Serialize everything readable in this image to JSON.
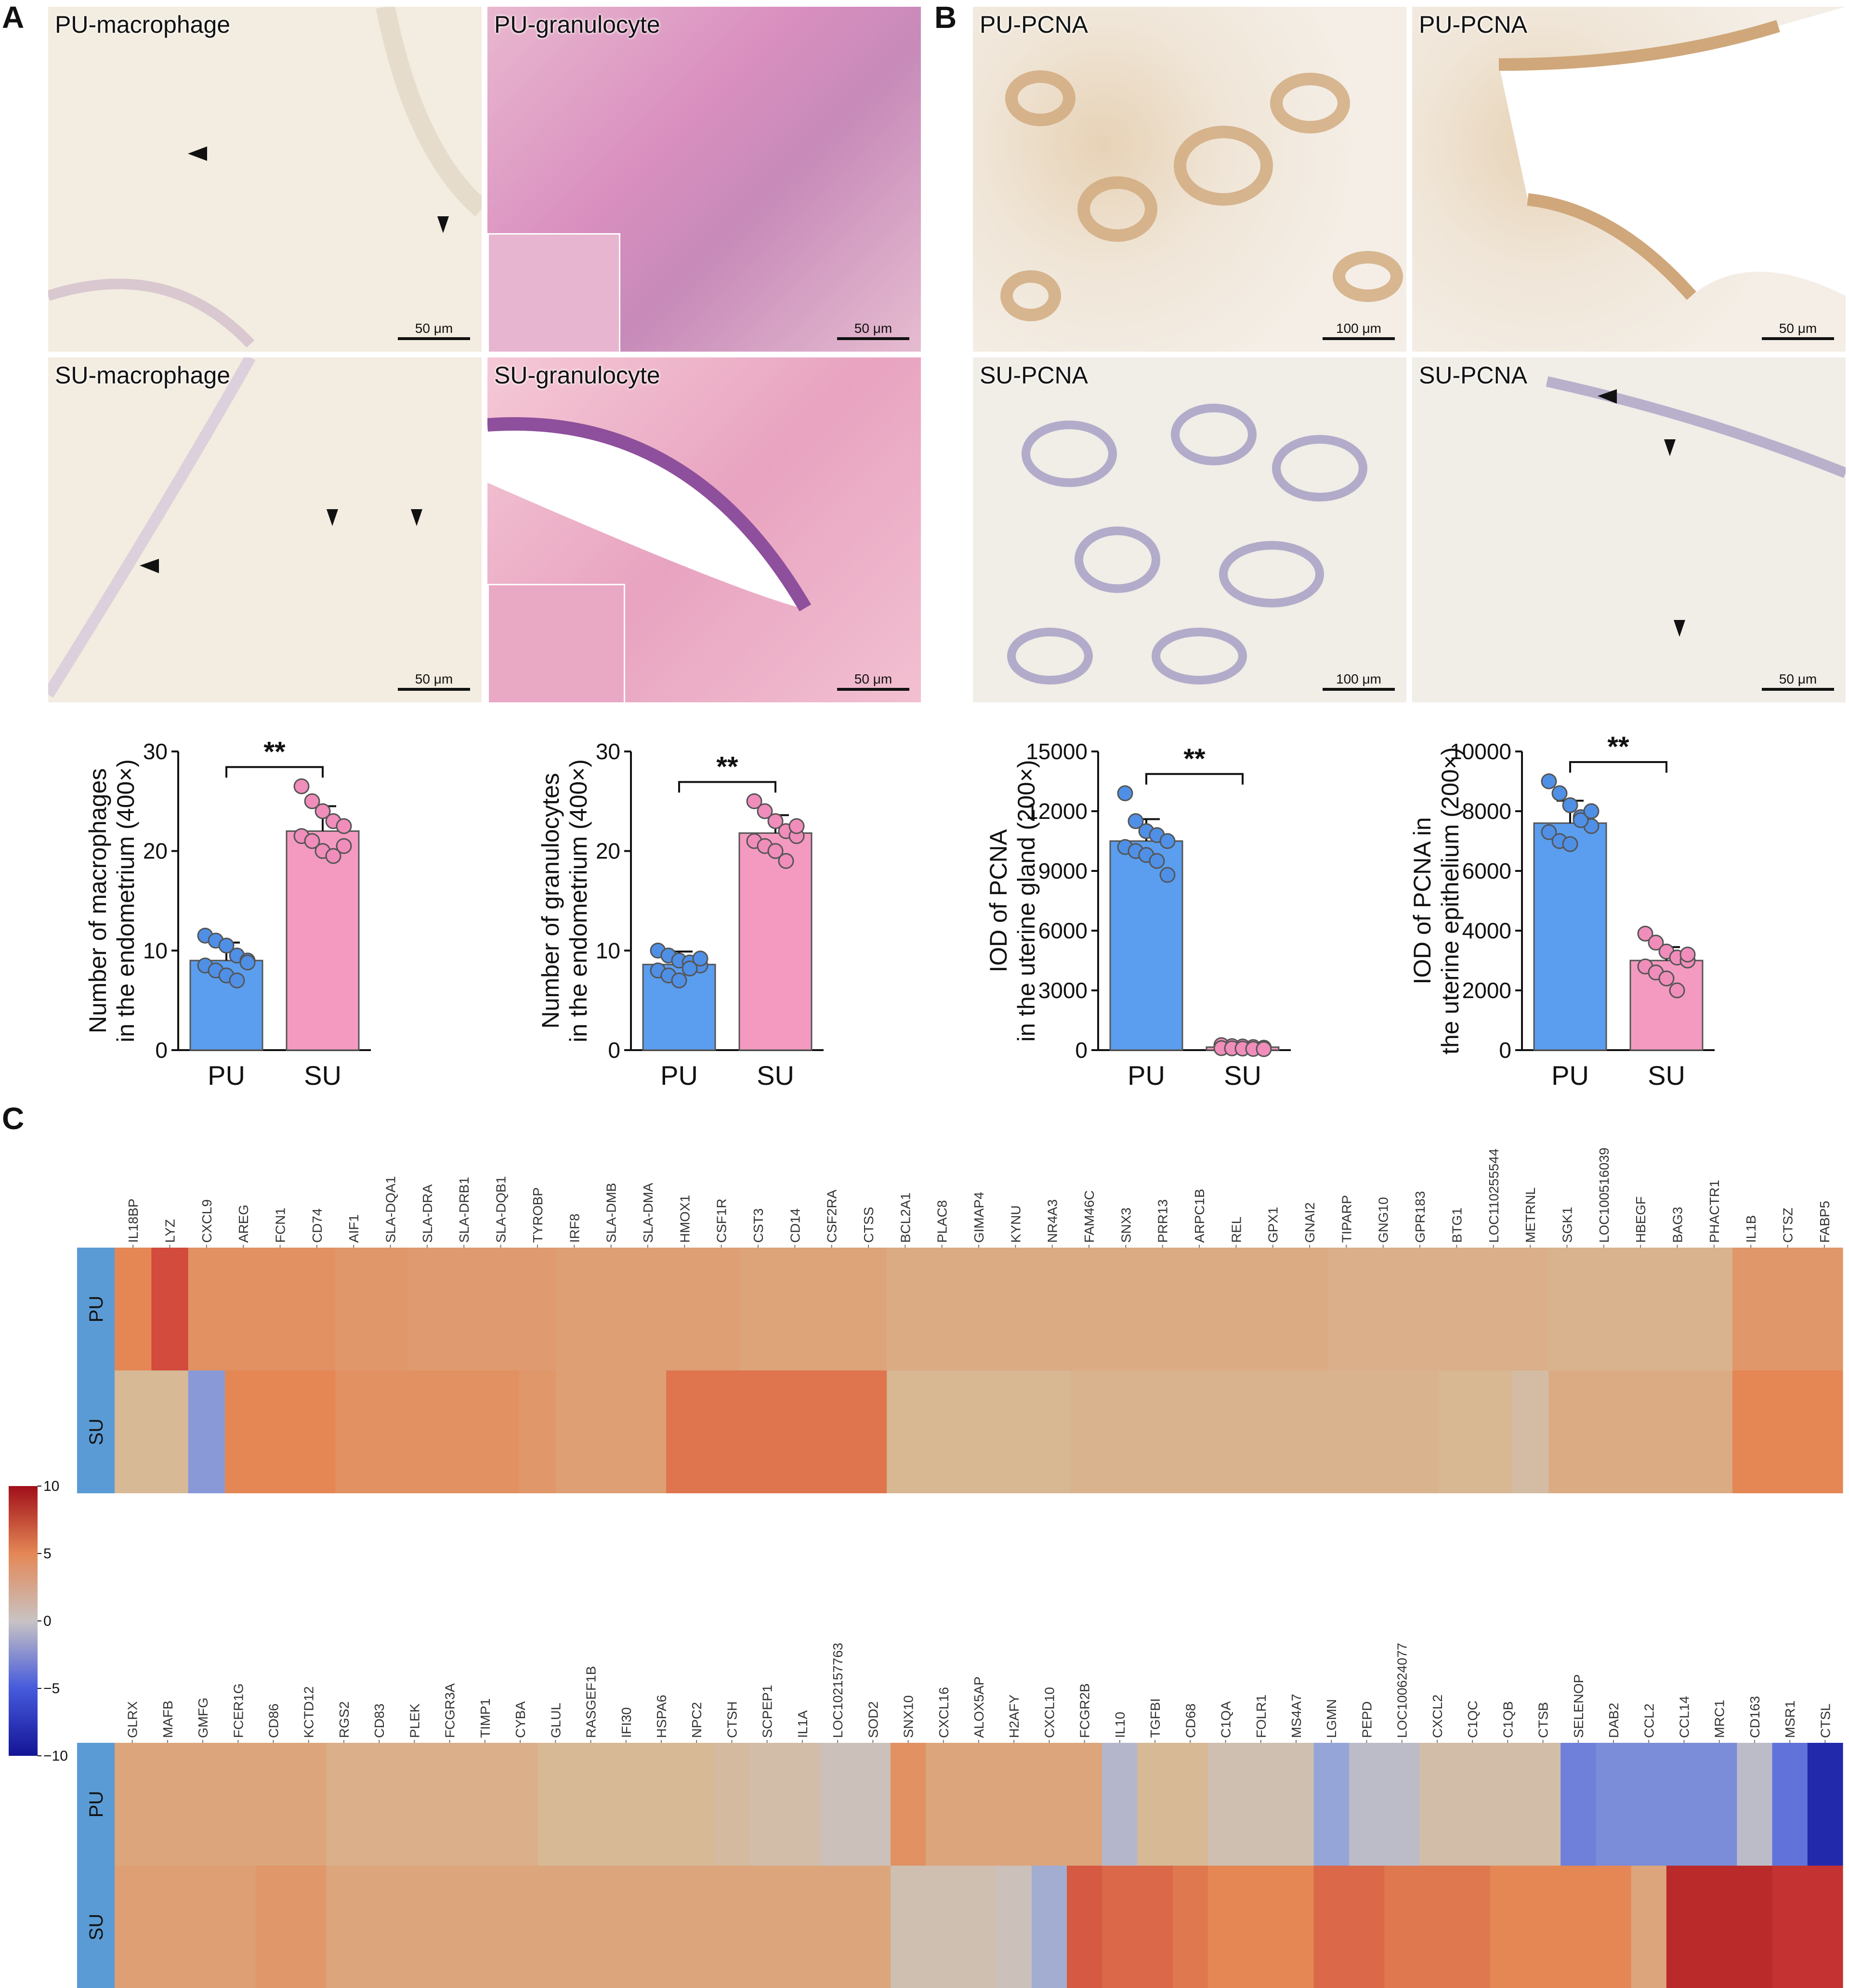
{
  "panel_labels": {
    "a": "A",
    "b": "B",
    "c": "C"
  },
  "panelA": {
    "images": [
      {
        "label": "PU-macrophage",
        "scale": "50 μm"
      },
      {
        "label": "PU-granulocyte",
        "scale": "50 μm"
      },
      {
        "label": "SU-macrophage",
        "scale": "50 μm"
      },
      {
        "label": "SU-granulocyte",
        "scale": "50 μm"
      }
    ]
  },
  "panelB": {
    "images": [
      {
        "label": "PU-PCNA",
        "scale": "100 μm"
      },
      {
        "label": "PU-PCNA",
        "scale": "50 μm"
      },
      {
        "label": "SU-PCNA",
        "scale": "100 μm"
      },
      {
        "label": "SU-PCNA",
        "scale": "50 μm"
      }
    ]
  },
  "colors": {
    "pu": "#5b9ef0",
    "su": "#f49ac1",
    "pu_dot": "#4f90e6",
    "su_dot": "#f08dbb"
  },
  "chart_data": [
    {
      "type": "bar",
      "categories": [
        "PU",
        "SU"
      ],
      "values": [
        9.0,
        22.0
      ],
      "errors": [
        1.8,
        2.5
      ],
      "points": {
        "PU": [
          11.5,
          11.0,
          10.5,
          9.5,
          9.0,
          8.5,
          8.0,
          7.5,
          7.0,
          8.8
        ],
        "SU": [
          26.5,
          25.0,
          24.0,
          23.0,
          22.5,
          21.5,
          21.0,
          20.0,
          19.5,
          20.5
        ]
      },
      "ylabel_lines": [
        "Number of macrophages",
        "in the endometrium (400×)"
      ],
      "ylim": [
        0,
        30
      ],
      "yticks": [
        0,
        10,
        20,
        30
      ],
      "significance": "**"
    },
    {
      "type": "bar",
      "categories": [
        "PU",
        "SU"
      ],
      "values": [
        8.6,
        21.8
      ],
      "errors": [
        1.3,
        1.8
      ],
      "points": {
        "PU": [
          10.0,
          9.5,
          9.0,
          8.8,
          8.5,
          8.0,
          7.5,
          7.0,
          8.2,
          9.2
        ],
        "SU": [
          25.0,
          24.0,
          23.0,
          22.0,
          21.5,
          21.0,
          20.5,
          20.0,
          19.0,
          22.5
        ]
      },
      "ylabel_lines": [
        "Number of granulocytes",
        "in the endometrium (400×)"
      ],
      "ylim": [
        0,
        30
      ],
      "yticks": [
        0,
        10,
        20,
        30
      ],
      "significance": "**"
    },
    {
      "type": "bar",
      "categories": [
        "PU",
        "SU"
      ],
      "values": [
        10500,
        150
      ],
      "errors": [
        1100,
        60
      ],
      "points": {
        "PU": [
          12900,
          11500,
          11000,
          10800,
          10500,
          10200,
          10000,
          9800,
          9500,
          8800
        ],
        "SU": [
          250,
          200,
          180,
          150,
          120,
          100,
          90,
          80,
          60,
          50
        ]
      },
      "ylabel_lines": [
        "IOD of PCNA",
        "in the uterine gland (200×)"
      ],
      "ylim": [
        0,
        15000
      ],
      "yticks": [
        0,
        3000,
        6000,
        9000,
        12000,
        15000
      ],
      "significance": "**"
    },
    {
      "type": "bar",
      "categories": [
        "PU",
        "SU"
      ],
      "values": [
        7600,
        3000
      ],
      "errors": [
        750,
        450
      ],
      "points": {
        "PU": [
          9000,
          8600,
          8200,
          7800,
          7500,
          7300,
          7000,
          6900,
          7700,
          8000
        ],
        "SU": [
          3900,
          3600,
          3300,
          3100,
          3000,
          2800,
          2600,
          2400,
          2000,
          3200
        ]
      },
      "ylabel_lines": [
        "IOD of PCNA in",
        "the uterine epithelium (200×)"
      ],
      "ylim": [
        0,
        10000
      ],
      "yticks": [
        0,
        2000,
        4000,
        6000,
        8000,
        10000
      ],
      "significance": "**"
    },
    {
      "type": "heatmap",
      "rows": [
        "PU",
        "SU"
      ],
      "columns": [
        "IL18BP",
        "LYZ",
        "CXCL9",
        "AREG",
        "FCN1",
        "CD74",
        "AIF1",
        "SLA-DQA1",
        "SLA-DRA",
        "SLA-DRB1",
        "SLA-DQB1",
        "TYROBP",
        "IRF8",
        "SLA-DMB",
        "SLA-DMA",
        "HMOX1",
        "CSF1R",
        "CST3",
        "CD14",
        "CSF2RA",
        "CTSS",
        "BCL2A1",
        "PLAC8",
        "GIMAP4",
        "KYNU",
        "NR4A3",
        "FAM46C",
        "SNX3",
        "PRR13",
        "ARPC1B",
        "REL",
        "GPX1",
        "GNAI2",
        "TIPARP",
        "GNG10",
        "GPR183",
        "BTG1",
        "LOC110255544",
        "METRNL",
        "SGK1",
        "LOC100516039",
        "HBEGF",
        "BAG3",
        "PHACTR1",
        "IL1B",
        "CTSZ",
        "FABP5"
      ],
      "values": [
        [
          5.0,
          7.0,
          4.5,
          4.5,
          4.5,
          4.5,
          4.2,
          4.2,
          4.0,
          4.0,
          4.0,
          4.0,
          3.8,
          3.8,
          3.8,
          3.8,
          3.8,
          3.6,
          3.6,
          3.6,
          3.6,
          3.2,
          3.2,
          3.2,
          3.2,
          3.2,
          3.2,
          3.2,
          3.2,
          3.2,
          3.2,
          3.2,
          3.2,
          3.0,
          3.0,
          3.0,
          3.0,
          3.0,
          3.0,
          2.8,
          2.8,
          2.8,
          2.8,
          2.8,
          4.2,
          4.2,
          4.2
        ],
        [
          2.5,
          2.5,
          -2.5,
          5.0,
          5.0,
          5.0,
          4.5,
          4.5,
          4.5,
          4.5,
          4.5,
          4.2,
          3.8,
          3.8,
          3.8,
          5.6,
          5.6,
          5.6,
          5.6,
          5.6,
          5.6,
          2.6,
          2.6,
          2.6,
          2.6,
          2.6,
          2.8,
          2.8,
          2.8,
          2.8,
          2.8,
          2.8,
          2.8,
          2.8,
          2.8,
          2.8,
          2.6,
          2.6,
          1.8,
          3.2,
          3.2,
          3.2,
          3.2,
          3.2,
          5.0,
          5.0,
          5.0
        ]
      ],
      "colorbar": {
        "min": -10,
        "max": 10,
        "ticks": [
          10,
          5,
          0,
          -5,
          -10
        ]
      }
    },
    {
      "type": "heatmap",
      "rows": [
        "PU",
        "SU"
      ],
      "columns": [
        "GLRX",
        "MAFB",
        "GMFG",
        "FCER1G",
        "CD86",
        "KCTD12",
        "RGS2",
        "CD83",
        "PLEK",
        "FCGR3A",
        "TIMP1",
        "CYBA",
        "GLUL",
        "RASGEF1B",
        "IFI30",
        "HSPA6",
        "NPC2",
        "CTSH",
        "SCPEP1",
        "IL1A",
        "LOC102157763",
        "SOD2",
        "SNX10",
        "CXCL16",
        "ALOX5AP",
        "H2AFY",
        "CXCL10",
        "FCGR2B",
        "IL10",
        "TGFBI",
        "CD68",
        "C1QA",
        "FOLR1",
        "MS4A7",
        "LGMN",
        "PEPD",
        "LOC100624077",
        "CXCL2",
        "C1QC",
        "C1QB",
        "CTSB",
        "SELENOP",
        "DAB2",
        "CCL2",
        "CCL14",
        "MRC1",
        "CD163",
        "MSR1",
        "CTSL"
      ],
      "values": [
        [
          3.5,
          3.5,
          3.5,
          3.5,
          3.5,
          3.5,
          3.0,
          3.0,
          3.0,
          3.0,
          3.0,
          3.0,
          2.5,
          2.5,
          2.5,
          2.5,
          2.5,
          2.0,
          1.5,
          1.5,
          0.5,
          0.5,
          4.5,
          3.5,
          3.5,
          3.5,
          3.5,
          3.5,
          -0.8,
          2.5,
          2.5,
          1.0,
          1.0,
          1.0,
          -2.0,
          -0.5,
          -0.5,
          1.5,
          1.5,
          1.5,
          1.5,
          -3.5,
          -3.0,
          -3.0,
          -3.0,
          -3.0,
          -0.5,
          -4.0,
          -8.5
        ],
        [
          3.8,
          3.8,
          3.8,
          3.8,
          4.2,
          4.2,
          3.5,
          3.5,
          3.5,
          3.5,
          3.5,
          3.5,
          3.5,
          3.5,
          3.5,
          3.5,
          3.5,
          3.5,
          3.5,
          3.5,
          3.5,
          3.5,
          1.0,
          1.0,
          1.0,
          0.5,
          -1.5,
          6.5,
          6.0,
          6.0,
          5.5,
          5.0,
          5.0,
          5.0,
          6.0,
          6.0,
          5.5,
          5.5,
          5.5,
          5.0,
          5.0,
          5.0,
          5.0,
          3.5,
          8.5,
          8.5,
          8.5,
          8.0,
          8.0
        ]
      ],
      "colorbar": {
        "min": -10,
        "max": 10,
        "ticks": [
          10,
          5,
          0,
          -5,
          -10
        ]
      }
    }
  ],
  "heatmap_row_labels": [
    "PU",
    "SU"
  ],
  "colorbar_ticks": [
    "10",
    "5",
    "0",
    "−5",
    "−10"
  ]
}
